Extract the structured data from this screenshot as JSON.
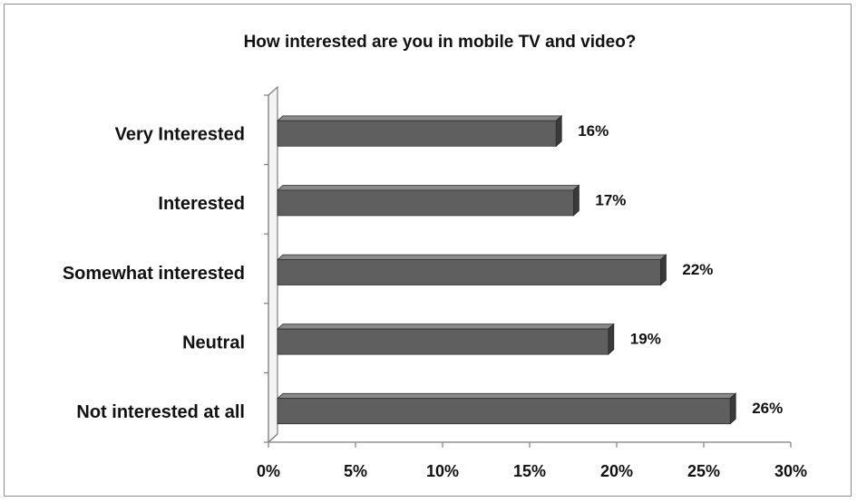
{
  "chart_data": {
    "type": "bar",
    "orientation": "horizontal",
    "title": "How interested are you in mobile TV and video?",
    "categories": [
      "Very Interested",
      "Interested",
      "Somewhat interested",
      "Neutral",
      "Not interested at all"
    ],
    "values": [
      16,
      17,
      22,
      19,
      26
    ],
    "data_labels": [
      "16%",
      "17%",
      "22%",
      "19%",
      "26%"
    ],
    "xlim": [
      0,
      30
    ],
    "x_ticks": [
      0,
      5,
      10,
      15,
      20,
      25,
      30
    ],
    "x_tick_labels": [
      "0%",
      "5%",
      "10%",
      "15%",
      "20%",
      "25%",
      "30%"
    ],
    "xlabel": "",
    "ylabel": "",
    "grid": false,
    "legend": "none",
    "style": "3d",
    "colors": {
      "bar_front": "#5f5f5f",
      "bar_top": "#8a8a8a",
      "bar_side": "#3a3a3a",
      "axis": "#7f7f7f"
    }
  }
}
